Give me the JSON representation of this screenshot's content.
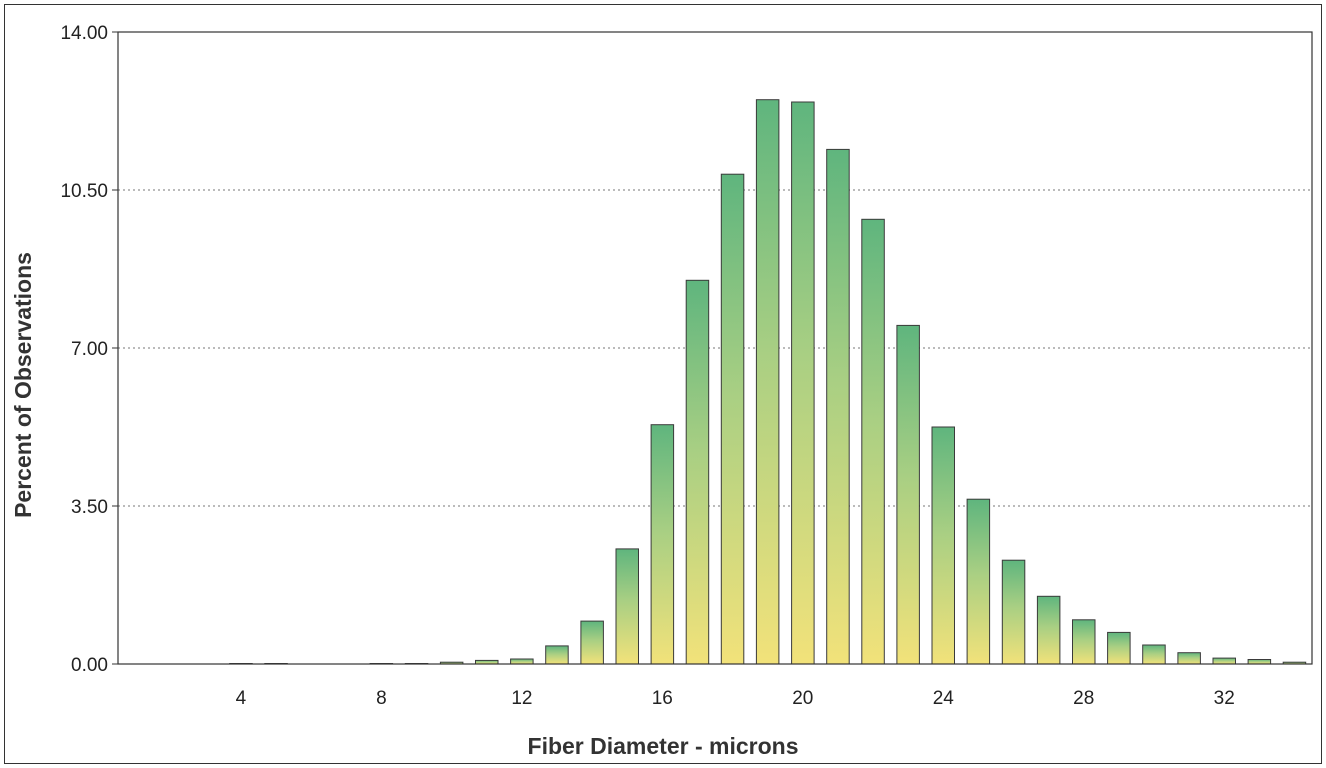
{
  "chart_data": {
    "type": "bar",
    "title": "",
    "xlabel": "Fiber Diameter - microns",
    "ylabel": "Percent of Observations",
    "xlim": [
      0.5,
      34.5
    ],
    "ylim": [
      0,
      14
    ],
    "y_ticks": [
      "0.00",
      "3.50",
      "7.00",
      "10.50",
      "14.00"
    ],
    "x_ticks": [
      "4",
      "8",
      "12",
      "16",
      "20",
      "24",
      "28",
      "32"
    ],
    "grid": "horizontal dotted",
    "legend": "none",
    "colors": {
      "bar_top": "#5fb57e",
      "bar_bottom": "#f2e27a",
      "bar_edge": "#3a3a3a",
      "grid": "#777777"
    },
    "x": [
      4,
      5,
      6,
      7,
      8,
      9,
      10,
      11,
      12,
      13,
      14,
      15,
      16,
      17,
      18,
      19,
      20,
      21,
      22,
      23,
      24,
      25,
      26,
      27,
      28,
      29,
      30,
      31,
      32,
      33,
      34
    ],
    "values": [
      0.01,
      0.01,
      0.0,
      0.0,
      0.01,
      0.01,
      0.04,
      0.08,
      0.11,
      0.4,
      0.95,
      2.55,
      5.3,
      8.5,
      10.85,
      12.5,
      12.45,
      11.4,
      9.85,
      7.5,
      5.25,
      3.65,
      2.3,
      1.5,
      0.98,
      0.7,
      0.42,
      0.25,
      0.13,
      0.1,
      0.04
    ]
  }
}
